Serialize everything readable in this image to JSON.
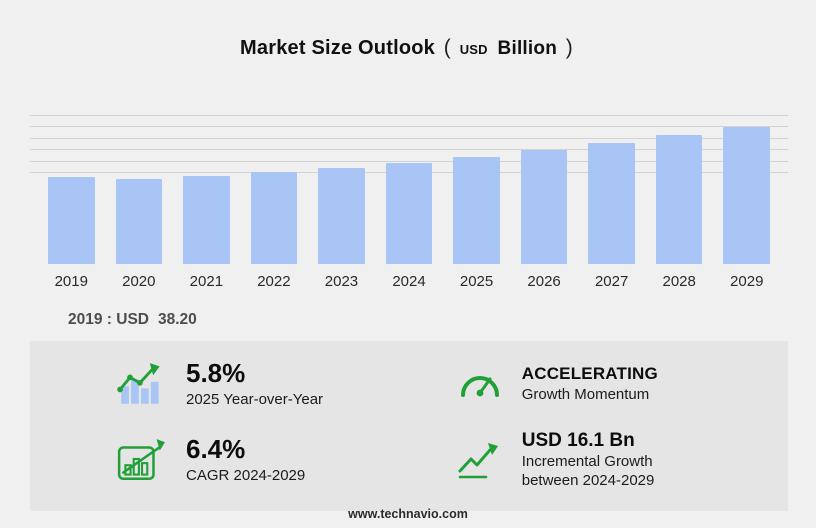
{
  "title": {
    "main": "Market Size Outlook",
    "paren_open": "(",
    "usd": "USD",
    "billion": "Billion",
    "paren_close": ")"
  },
  "chart_data": {
    "type": "bar",
    "title": "Market Size Outlook (USD Billion)",
    "xlabel": "",
    "ylabel": "",
    "categories": [
      "2019",
      "2020",
      "2021",
      "2022",
      "2023",
      "2024",
      "2025",
      "2026",
      "2027",
      "2028",
      "2029"
    ],
    "values": [
      38.2,
      37.4,
      38.6,
      40.3,
      42.2,
      44.2,
      46.8,
      50.0,
      53.2,
      56.6,
      60.3
    ],
    "ylim": [
      0,
      65
    ],
    "gridlines": [
      40,
      45,
      50,
      55,
      60,
      65
    ],
    "grid": "horizontal-upper",
    "legend": "none",
    "bar_color": "#a9c5f6"
  },
  "annotation": {
    "label": "2019 : USD",
    "value": "38.20"
  },
  "stats": [
    {
      "id": "yoy",
      "value": "5.8%",
      "label": "2025 Year-over-Year"
    },
    {
      "id": "momentum",
      "value": "ACCELERATING",
      "label": "Growth Momentum"
    },
    {
      "id": "cagr",
      "value": "6.4%",
      "label": "CAGR 2024-2029"
    },
    {
      "id": "incremental",
      "value": "USD 16.1 Bn",
      "label_line1": "Incremental Growth",
      "label_line2": "between 2024-2029"
    }
  ],
  "footer": {
    "url": "www.technavio.com"
  },
  "colors": {
    "accent_green": "#21a038",
    "bar": "#a9c5f6",
    "background": "#f0f0f0",
    "panel": "#e5e5e5"
  }
}
